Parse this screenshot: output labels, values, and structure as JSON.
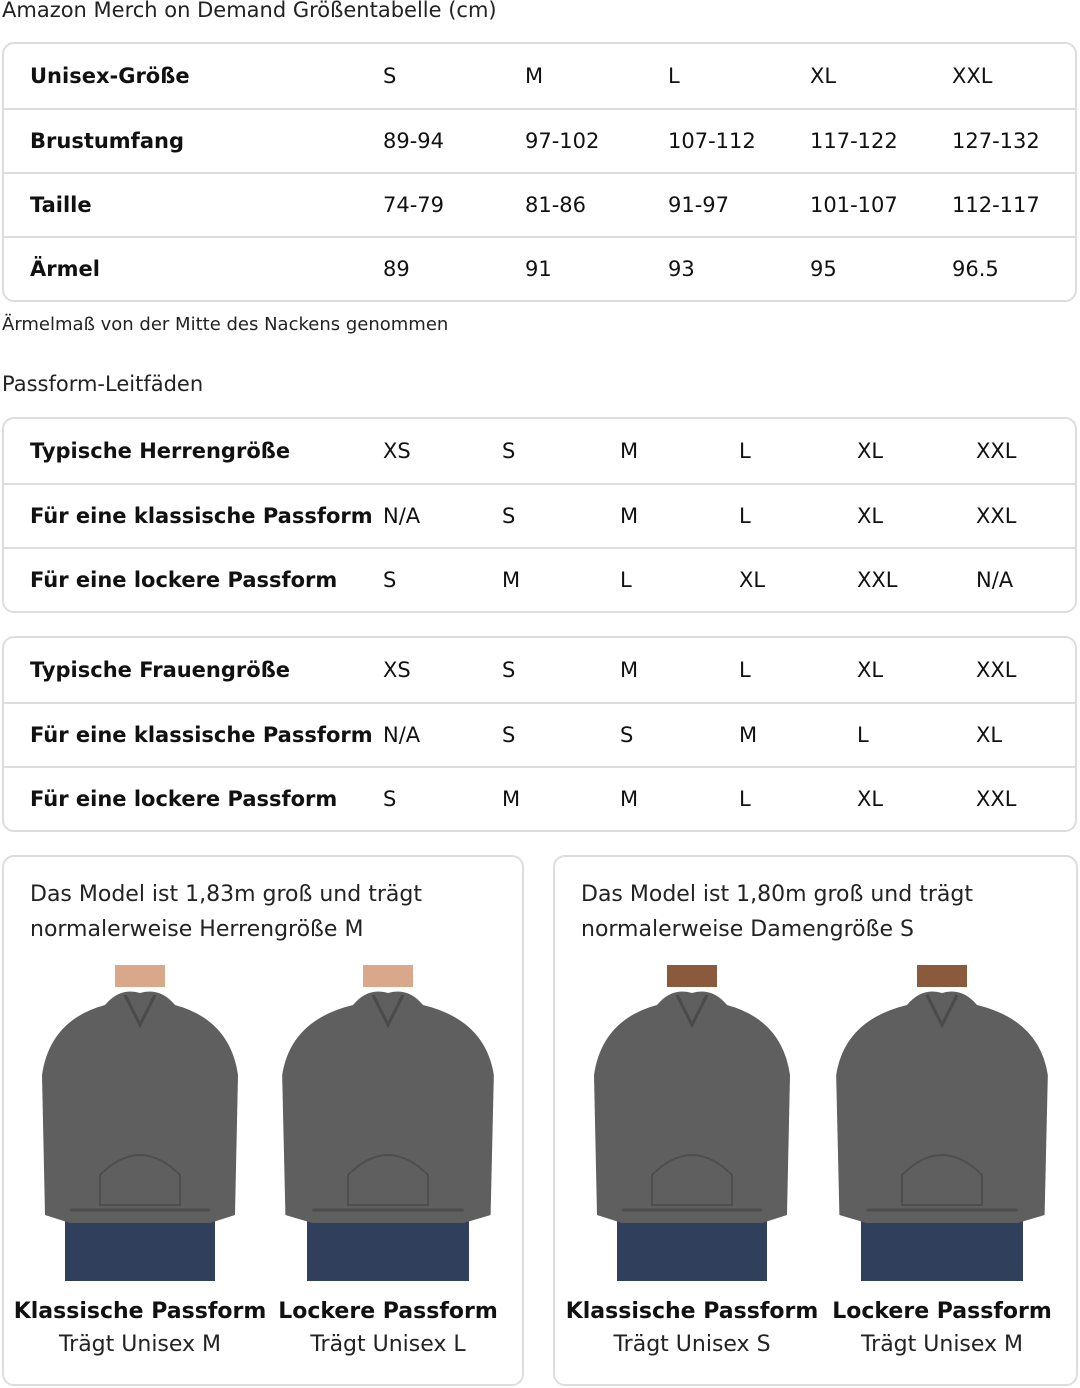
{
  "title": "Amazon Merch on Demand Größentabelle (cm)",
  "unisex_table": {
    "rows": [
      {
        "label": "Unisex-Größe",
        "values": [
          "S",
          "M",
          "L",
          "XL",
          "XXL"
        ]
      },
      {
        "label": "Brustumfang",
        "values": [
          "89-94",
          "97-102",
          "107-112",
          "117-122",
          "127-132"
        ]
      },
      {
        "label": "Taille",
        "values": [
          "74-79",
          "81-86",
          "91-97",
          "101-107",
          "112-117"
        ]
      },
      {
        "label": "Ärmel",
        "values": [
          "89",
          "91",
          "93",
          "95",
          "96.5"
        ]
      }
    ]
  },
  "caption": "Ärmelmaß von der Mitte des Nackens genommen",
  "fit_section_title": "Passform-Leitfäden",
  "men_table": {
    "rows": [
      {
        "label": "Typische Herrengröße",
        "values": [
          "XS",
          "S",
          "M",
          "L",
          "XL",
          "XXL"
        ]
      },
      {
        "label": "Für eine klassische Passform",
        "values": [
          "N/A",
          "S",
          "M",
          "L",
          "XL",
          "XXL"
        ]
      },
      {
        "label": "Für eine lockere Passform",
        "values": [
          "S",
          "M",
          "L",
          "XL",
          "XXL",
          "N/A"
        ]
      }
    ]
  },
  "women_table": {
    "rows": [
      {
        "label": "Typische Frauengröße",
        "values": [
          "XS",
          "S",
          "M",
          "L",
          "XL",
          "XXL"
        ]
      },
      {
        "label": "Für eine klassische Passform",
        "values": [
          "N/A",
          "S",
          "S",
          "M",
          "L",
          "XL"
        ]
      },
      {
        "label": "Für eine lockere Passform",
        "values": [
          "S",
          "M",
          "M",
          "L",
          "XL",
          "XXL"
        ]
      }
    ]
  },
  "cards": [
    {
      "description": "Das Model ist 1,83m groß und trägt normalerweise Herrengröße M",
      "fits": [
        {
          "heading": "Klassische Passform",
          "sub": "Trägt Unisex M"
        },
        {
          "heading": "Lockere Passform",
          "sub": "Trägt Unisex L"
        }
      ]
    },
    {
      "description": "Das Model ist 1,80m groß und trägt normalerweise Damengröße S",
      "fits": [
        {
          "heading": "Klassische Passform",
          "sub": "Trägt Unisex S"
        },
        {
          "heading": "Lockere Passform",
          "sub": "Trägt Unisex M"
        }
      ]
    }
  ],
  "colors": {
    "hoodie": "#5f5f5f",
    "jeans": "#2f3f5c",
    "border": "#dddddd"
  }
}
